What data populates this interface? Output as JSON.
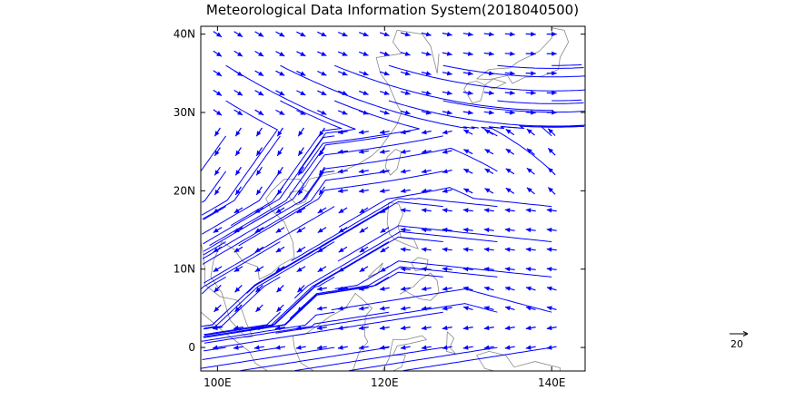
{
  "title": "Meteorological Data Information System(2018040500)",
  "chart_data": {
    "type": "streamline-vector-map",
    "title": "Meteorological Data Information System(2018040500)",
    "x_axis": {
      "label": "",
      "range": [
        98,
        144
      ],
      "ticks": [
        100,
        120,
        140
      ],
      "tick_labels": [
        "100E",
        "120E",
        "140E"
      ]
    },
    "y_axis": {
      "label": "",
      "range": [
        -3,
        41
      ],
      "ticks": [
        0,
        10,
        20,
        30,
        40
      ],
      "tick_labels": [
        "0",
        "10N",
        "20N",
        "30N",
        "40N"
      ]
    },
    "vector_color": "#0000ff",
    "streamline_color": "#0000ff",
    "coastline_color": "#808080",
    "reference_vector": {
      "magnitude": 20,
      "label": "20"
    },
    "flow_regimes": [
      {
        "region": "north of 30N",
        "direction": "westerly / northwesterly"
      },
      {
        "region": "South China Sea 10N-20N",
        "direction": "northeasterly"
      },
      {
        "region": "western Pacific 20N-25N",
        "direction": "easterly"
      },
      {
        "region": "equatorial west Pacific 0-8N",
        "direction": "easterly"
      }
    ]
  }
}
